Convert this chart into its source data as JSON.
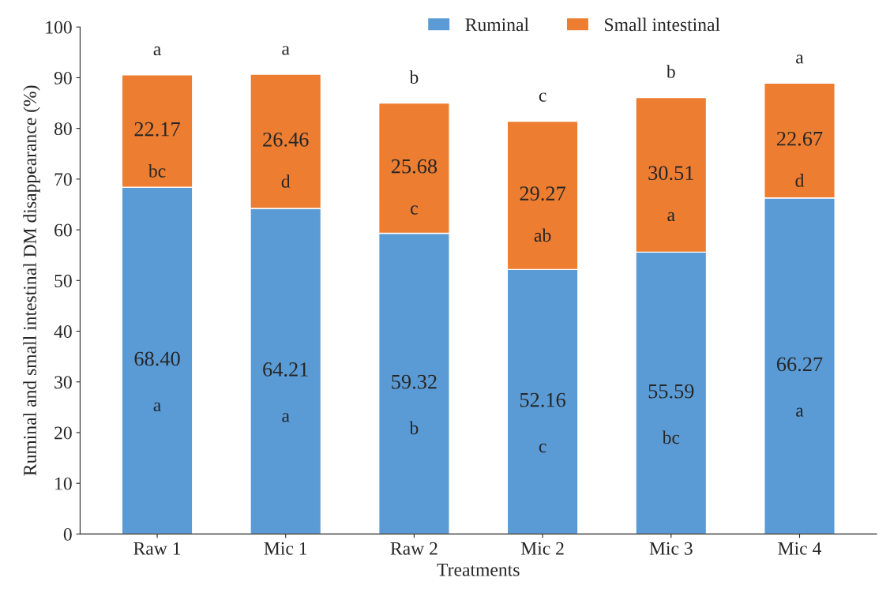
{
  "chart_data": {
    "type": "bar",
    "stacked": true,
    "xlabel": "Treatments",
    "ylabel": "Ruminal and small intestinal DM disappearance (%)",
    "categories": [
      "Raw 1",
      "Mic 1",
      "Raw 2",
      "Mic 2",
      "Mic 3",
      "Mic 4"
    ],
    "series": [
      {
        "name": "Ruminal",
        "color": "#5b9bd5",
        "values": [
          68.4,
          64.21,
          59.32,
          52.16,
          55.59,
          66.27
        ],
        "value_labels": [
          "68.40",
          "64.21",
          "59.32",
          "52.16",
          "55.59",
          "66.27"
        ]
      },
      {
        "name": "Small intestinal",
        "color": "#ed7d31",
        "values": [
          22.17,
          26.46,
          25.68,
          29.27,
          30.51,
          22.67
        ],
        "value_labels": [
          "22.17",
          "26.46",
          "25.68",
          "29.27",
          "30.51",
          "22.67"
        ]
      }
    ],
    "ylim": [
      0,
      100
    ],
    "yticks": [
      0,
      10,
      20,
      30,
      40,
      50,
      60,
      70,
      80,
      90,
      100
    ],
    "grid": false,
    "legend": "top",
    "annotations": [
      "a",
      "a",
      "b",
      "c",
      "b",
      "a",
      "bc",
      "d",
      "c",
      "ab",
      "a",
      "d",
      "a",
      "a",
      "b",
      "c",
      "bc",
      "a"
    ]
  }
}
